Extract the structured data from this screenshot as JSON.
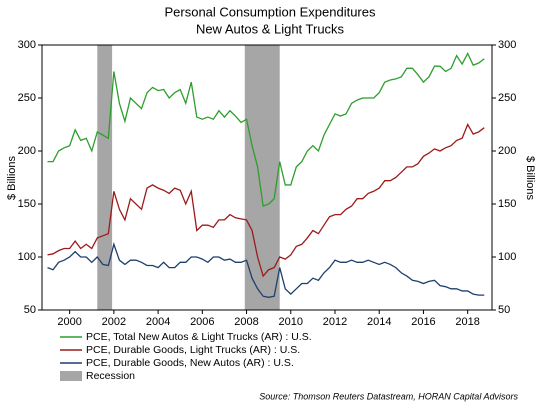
{
  "chart_data": {
    "type": "line",
    "title": "Personal Consumption Expenditures",
    "subtitle": "New Autos & Light Trucks",
    "y_label": "$ Billions",
    "y2_label": "$ Billions",
    "source": "Source: Thomson Reuters Datastream, HORAN Capital Advisors",
    "xlim": [
      1998.75,
      2019.1
    ],
    "xticks": [
      2000,
      2002,
      2004,
      2006,
      2008,
      2010,
      2012,
      2014,
      2016,
      2018
    ],
    "ylim": [
      50,
      300
    ],
    "yticks": [
      50,
      100,
      150,
      200,
      250,
      300
    ],
    "y2lim": [
      50,
      300
    ],
    "y2ticks": [
      50,
      100,
      150,
      200,
      250,
      300
    ],
    "recession": {
      "name": "Recession",
      "color": "#a6a6a6",
      "spans": [
        [
          2001.25,
          2001.92
        ],
        [
          2007.92,
          2009.5
        ]
      ]
    },
    "x": [
      1999,
      1999.25,
      1999.5,
      1999.75,
      2000,
      2000.25,
      2000.5,
      2000.75,
      2001,
      2001.25,
      2001.5,
      2001.75,
      2002,
      2002.25,
      2002.5,
      2002.75,
      2003,
      2003.25,
      2003.5,
      2003.75,
      2004,
      2004.25,
      2004.5,
      2004.75,
      2005,
      2005.25,
      2005.5,
      2005.75,
      2006,
      2006.25,
      2006.5,
      2006.75,
      2007,
      2007.25,
      2007.5,
      2007.75,
      2008,
      2008.25,
      2008.5,
      2008.75,
      2009,
      2009.25,
      2009.5,
      2009.75,
      2010,
      2010.25,
      2010.5,
      2010.75,
      2011,
      2011.25,
      2011.5,
      2011.75,
      2012,
      2012.25,
      2012.5,
      2012.75,
      2013,
      2013.25,
      2013.5,
      2013.75,
      2014,
      2014.25,
      2014.5,
      2014.75,
      2015,
      2015.25,
      2015.5,
      2015.75,
      2016,
      2016.25,
      2016.5,
      2016.75,
      2017,
      2017.25,
      2017.5,
      2017.75,
      2018,
      2018.25,
      2018.5,
      2018.75
    ],
    "series": [
      {
        "name": "PCE, Total New Autos & Light Trucks (AR) : U.S.",
        "color": "#2e9e2e",
        "values": [
          190,
          190,
          200,
          203,
          205,
          220,
          210,
          212,
          200,
          218,
          215,
          212,
          275,
          245,
          228,
          250,
          245,
          240,
          255,
          260,
          257,
          258,
          250,
          255,
          258,
          245,
          265,
          232,
          230,
          232,
          230,
          238,
          232,
          238,
          233,
          227,
          230,
          205,
          185,
          148,
          150,
          155,
          190,
          168,
          168,
          185,
          190,
          200,
          205,
          200,
          215,
          225,
          235,
          233,
          235,
          245,
          248,
          250,
          250,
          250,
          255,
          265,
          267,
          268,
          270,
          278,
          278,
          272,
          265,
          270,
          280,
          280,
          275,
          278,
          290,
          282,
          292,
          281,
          283,
          287
        ]
      },
      {
        "name": "PCE, Durable Goods, Light Trucks (AR) : U.S.",
        "color": "#9c1b1b",
        "values": [
          102,
          103,
          106,
          108,
          108,
          115,
          108,
          112,
          108,
          118,
          120,
          122,
          162,
          145,
          135,
          155,
          150,
          145,
          165,
          168,
          165,
          163,
          160,
          165,
          163,
          150,
          162,
          125,
          130,
          130,
          128,
          135,
          135,
          140,
          137,
          136,
          135,
          125,
          100,
          82,
          88,
          90,
          100,
          98,
          102,
          110,
          112,
          118,
          125,
          122,
          130,
          138,
          140,
          140,
          145,
          148,
          155,
          155,
          160,
          162,
          165,
          172,
          172,
          175,
          180,
          185,
          185,
          188,
          195,
          198,
          202,
          200,
          203,
          205,
          210,
          212,
          225,
          216,
          218,
          222
        ]
      },
      {
        "name": "PCE, Durable Goods, New Autos (AR) : U.S.",
        "color": "#1f3f6e",
        "values": [
          90,
          88,
          95,
          97,
          100,
          105,
          100,
          100,
          95,
          100,
          93,
          92,
          112,
          97,
          93,
          97,
          97,
          95,
          92,
          92,
          90,
          95,
          90,
          90,
          95,
          95,
          100,
          100,
          98,
          95,
          100,
          100,
          97,
          98,
          95,
          95,
          97,
          80,
          70,
          63,
          62,
          63,
          90,
          70,
          65,
          70,
          75,
          75,
          80,
          78,
          85,
          90,
          97,
          95,
          95,
          97,
          95,
          95,
          97,
          95,
          93,
          95,
          93,
          90,
          85,
          82,
          78,
          77,
          75,
          77,
          78,
          73,
          72,
          70,
          70,
          68,
          68,
          65,
          64,
          64
        ]
      }
    ]
  }
}
